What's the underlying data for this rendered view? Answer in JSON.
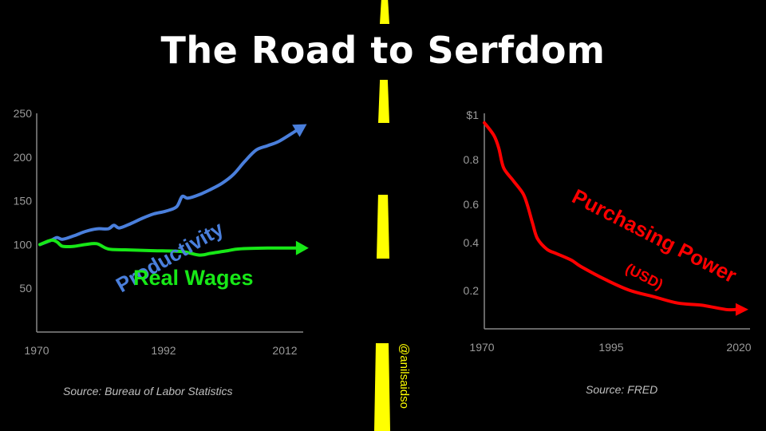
{
  "title": "The Road to Serfdom",
  "credit": "@anilsaidso",
  "colors": {
    "background": "#000000",
    "road_line": "#ffff00",
    "productivity": "#4a7fdc",
    "real_wages": "#17e817",
    "purchasing_power": "#ff0000",
    "axis": "#888888",
    "tick_text": "#9a9a9a"
  },
  "chart_data": [
    {
      "type": "line",
      "x_ticks": [
        "1970",
        "1992",
        "2012"
      ],
      "y_ticks": [
        50,
        100,
        150,
        200,
        250
      ],
      "xlim": [
        1970,
        2016
      ],
      "ylim": [
        0,
        250
      ],
      "grid": false,
      "source": "Source: Bureau of Labor Statistics",
      "series": [
        {
          "name": "Productivity",
          "x": [
            1970,
            1972,
            1973,
            1974,
            1976,
            1978,
            1980,
            1982,
            1983,
            1984,
            1986,
            1988,
            1990,
            1992,
            1994,
            1995,
            1996,
            1998,
            2000,
            2002,
            2004,
            2006,
            2008,
            2010,
            2012,
            2015
          ],
          "y": [
            100,
            105,
            108,
            106,
            110,
            115,
            118,
            118,
            122,
            119,
            124,
            130,
            135,
            138,
            143,
            155,
            153,
            157,
            163,
            170,
            180,
            195,
            208,
            213,
            218,
            230
          ]
        },
        {
          "name": "Real Wages",
          "x": [
            1970,
            1972,
            1973,
            1974,
            1976,
            1978,
            1980,
            1982,
            1985,
            1990,
            1995,
            1998,
            2000,
            2003,
            2005,
            2010,
            2015
          ],
          "y": [
            100,
            105,
            103,
            98,
            98,
            100,
            101,
            95,
            94,
            93,
            92,
            88,
            90,
            93,
            95,
            96,
            96
          ]
        }
      ]
    },
    {
      "type": "line",
      "x_ticks": [
        "1970",
        "1995",
        "2020"
      ],
      "y_ticks": [
        "$1",
        "0.8",
        "0.6",
        "0.4",
        "0.2"
      ],
      "xlim": [
        1970,
        2023
      ],
      "ylim": [
        0.0,
        1.0
      ],
      "grid": false,
      "source": "Source: FRED",
      "series": [
        {
          "name": "Purchasing Power",
          "unit": "(USD)",
          "x": [
            1970,
            1972,
            1973,
            1974,
            1976,
            1978,
            1979,
            1980,
            1981,
            1983,
            1985,
            1988,
            1990,
            1995,
            2000,
            2005,
            2010,
            2015,
            2020,
            2022
          ],
          "y": [
            0.96,
            0.9,
            0.84,
            0.75,
            0.69,
            0.63,
            0.57,
            0.49,
            0.42,
            0.37,
            0.35,
            0.32,
            0.29,
            0.23,
            0.18,
            0.15,
            0.12,
            0.11,
            0.09,
            0.09
          ]
        }
      ]
    }
  ]
}
